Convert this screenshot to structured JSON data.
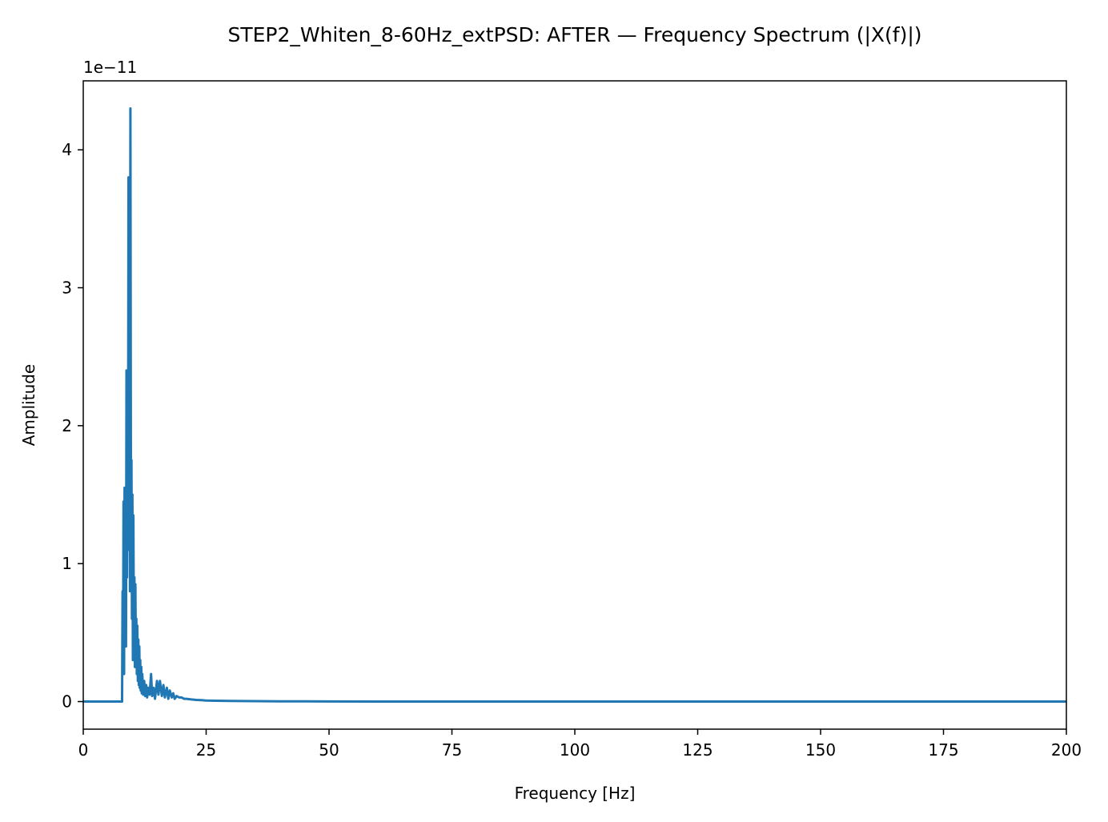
{
  "chart_data": {
    "type": "line",
    "title": "STEP2_Whiten_8-60Hz_extPSD: AFTER — Frequency Spectrum (|X(f)|)",
    "xlabel": "Frequency [Hz]",
    "ylabel": "Amplitude",
    "y_offset_label": "1e−11",
    "y_scale": 1e-11,
    "xlim": [
      0,
      200
    ],
    "ylim": [
      -0.2,
      4.5
    ],
    "x_ticks": [
      0,
      25,
      50,
      75,
      100,
      125,
      150,
      175,
      200
    ],
    "x_tick_labels": [
      "0",
      "25",
      "50",
      "75",
      "100",
      "125",
      "150",
      "175",
      "200"
    ],
    "y_ticks": [
      0,
      1,
      2,
      3,
      4
    ],
    "y_tick_labels": [
      "0",
      "1",
      "2",
      "3",
      "4"
    ],
    "grid": false,
    "line_color": "#1f77b4",
    "series": [
      {
        "name": "",
        "x": [
          0,
          7.8,
          7.9,
          8.0,
          8.1,
          8.2,
          8.3,
          8.4,
          8.5,
          8.6,
          8.7,
          8.8,
          8.9,
          9.0,
          9.1,
          9.2,
          9.3,
          9.4,
          9.5,
          9.6,
          9.7,
          9.8,
          9.9,
          10.0,
          10.1,
          10.2,
          10.3,
          10.4,
          10.5,
          10.6,
          10.7,
          10.8,
          10.9,
          11.0,
          11.1,
          11.2,
          11.3,
          11.4,
          11.5,
          11.6,
          11.7,
          11.8,
          11.9,
          12.0,
          12.2,
          12.4,
          12.6,
          12.8,
          13.0,
          13.2,
          13.5,
          13.8,
          14.0,
          14.3,
          14.6,
          15.0,
          15.3,
          15.6,
          16.0,
          16.3,
          16.6,
          17.0,
          17.3,
          17.6,
          18.0,
          18.3,
          18.6,
          19.0,
          19.5,
          20.0,
          20.5,
          21.0,
          22.0,
          23.0,
          24.0,
          25.0,
          27.0,
          30.0,
          35.0,
          40.0,
          50.0,
          60.0,
          80.0,
          100.0,
          150.0,
          200.0
        ],
        "y": [
          0,
          0,
          0.0,
          0.8,
          0.3,
          1.45,
          0.2,
          1.55,
          0.5,
          1.3,
          0.4,
          2.4,
          0.9,
          2.3,
          1.1,
          3.8,
          1.6,
          2.6,
          0.8,
          4.3,
          1.2,
          1.75,
          0.6,
          1.5,
          0.3,
          1.35,
          0.5,
          0.9,
          0.25,
          0.85,
          0.35,
          0.6,
          0.2,
          0.55,
          0.15,
          0.45,
          0.12,
          0.4,
          0.1,
          0.3,
          0.08,
          0.25,
          0.06,
          0.2,
          0.05,
          0.15,
          0.04,
          0.12,
          0.03,
          0.1,
          0.05,
          0.2,
          0.04,
          0.1,
          0.02,
          0.15,
          0.05,
          0.15,
          0.04,
          0.12,
          0.03,
          0.1,
          0.02,
          0.08,
          0.03,
          0.06,
          0.02,
          0.04,
          0.03,
          0.03,
          0.02,
          0.02,
          0.015,
          0.012,
          0.01,
          0.008,
          0.006,
          0.004,
          0.003,
          0.002,
          0.001,
          0.0,
          0.0,
          0.0,
          0.0,
          0.0
        ]
      }
    ]
  }
}
